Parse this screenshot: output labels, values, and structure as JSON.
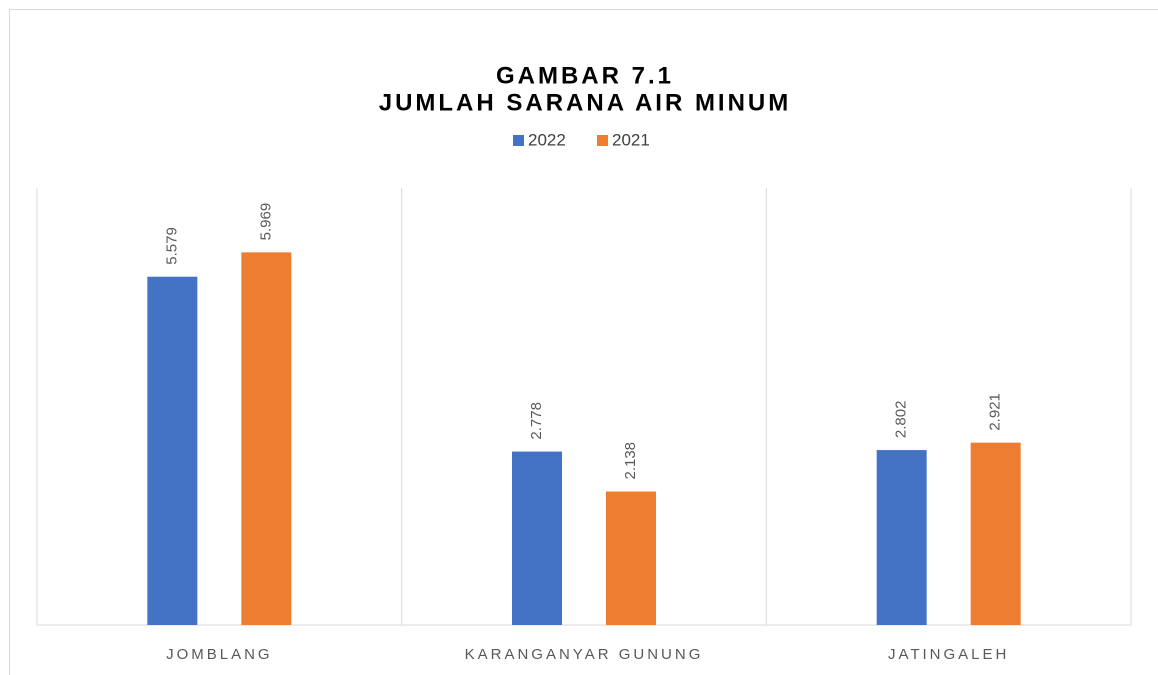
{
  "chart_data": {
    "type": "bar",
    "title": [
      "GAMBAR 7.1",
      "JUMLAH SARANA AIR MINUM"
    ],
    "categories": [
      "JOMBLANG",
      "KARANGANYAR GUNUNG",
      "JATINGALEH"
    ],
    "series": [
      {
        "name": "2022",
        "color": "#4472c4",
        "values": [
          5.579,
          2.778,
          2.802
        ]
      },
      {
        "name": "2021",
        "color": "#ed7d31",
        "values": [
          5.969,
          2.138,
          2.921
        ]
      }
    ],
    "ylim": [
      0,
      7
    ],
    "legend": "top"
  }
}
